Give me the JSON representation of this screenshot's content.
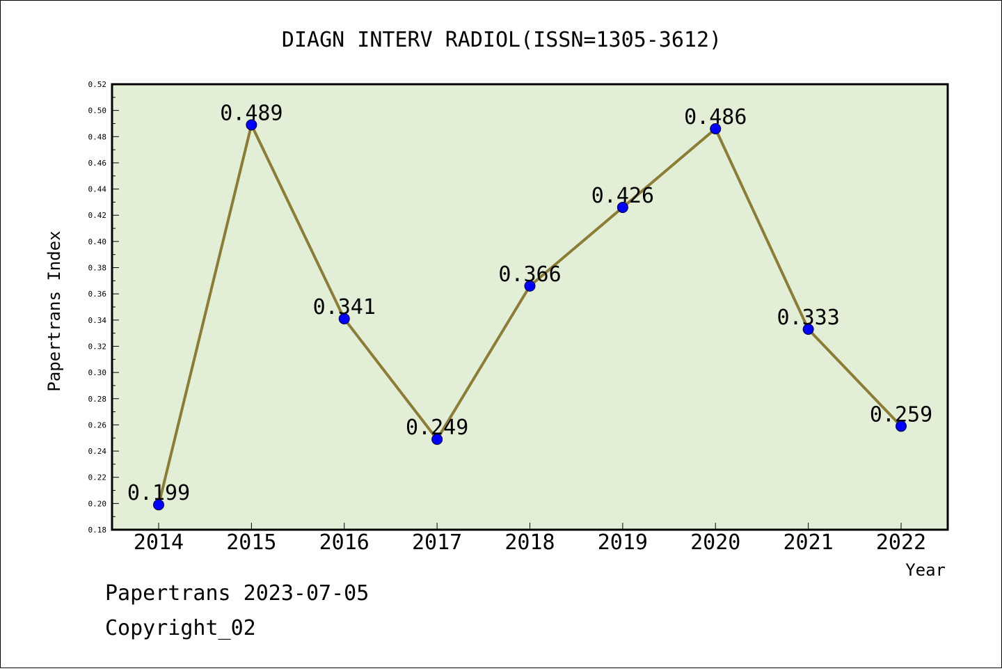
{
  "chart_data": {
    "type": "line",
    "title": "DIAGN INTERV RADIOL(ISSN=1305-3612)",
    "xlabel": "Year",
    "ylabel": "Papertrans Index",
    "categories": [
      "2014",
      "2015",
      "2016",
      "2017",
      "2018",
      "2019",
      "2020",
      "2021",
      "2022"
    ],
    "series": [
      {
        "values": [
          0.199,
          0.489,
          0.341,
          0.249,
          0.366,
          0.426,
          0.486,
          0.333,
          0.259
        ],
        "labels": [
          "0.199",
          "0.489",
          "0.341",
          "0.249",
          "0.366",
          "0.426",
          "0.486",
          "0.333",
          "0.259"
        ]
      }
    ],
    "ylim": [
      0.18,
      0.52
    ],
    "yticks": [
      0.18,
      0.2,
      0.22,
      0.24,
      0.26,
      0.28,
      0.3,
      0.32,
      0.34,
      0.36,
      0.38,
      0.4,
      0.42,
      0.44,
      0.46,
      0.48,
      0.5,
      0.52
    ],
    "ytick_labels": [
      "0.18",
      "0.20",
      "0.22",
      "0.24",
      "0.26",
      "0.28",
      "0.30",
      "0.32",
      "0.34",
      "0.36",
      "0.38",
      "0.40",
      "0.42",
      "0.44",
      "0.46",
      "0.48",
      "0.50",
      "0.52"
    ],
    "grid": false,
    "colors": {
      "plot_background": "#e2efd6",
      "line": "#8b7d36",
      "marker": "#0000ff"
    }
  },
  "footer": {
    "line1": "Papertrans 2023-07-05",
    "line2": "Copyright_02"
  }
}
